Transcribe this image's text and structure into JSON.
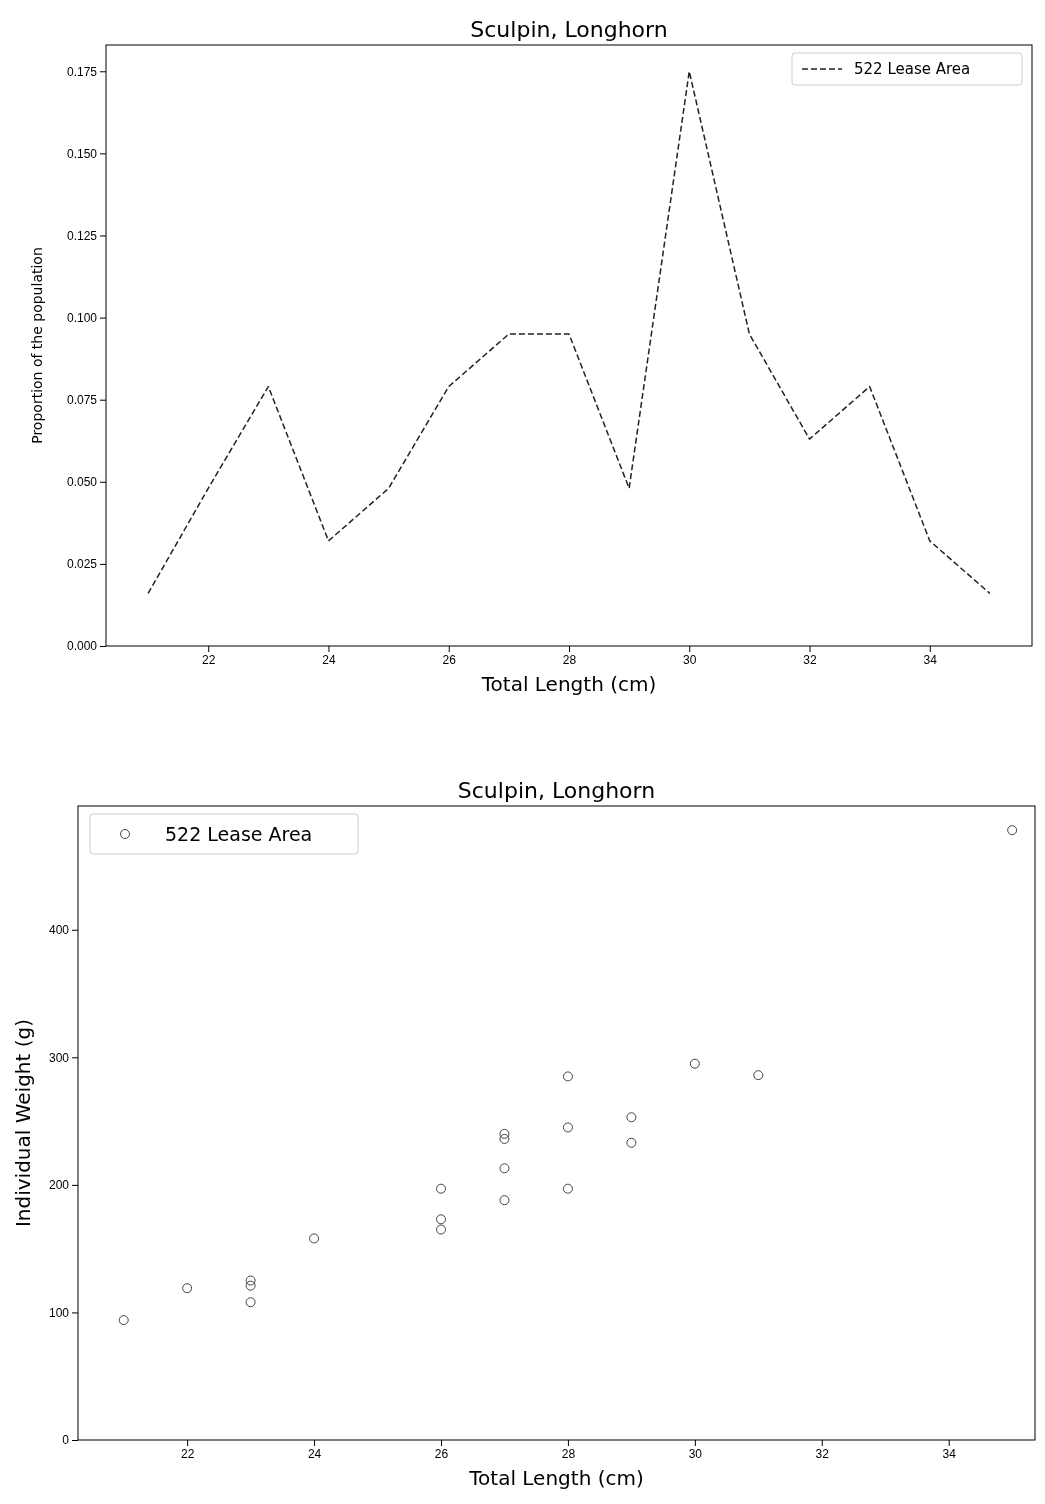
{
  "chart_data": [
    {
      "type": "line",
      "title": "Sculpin, Longhorn",
      "xlabel": "Total Length (cm)",
      "ylabel": "Proportion of the population",
      "x": [
        21,
        22,
        23,
        24,
        25,
        26,
        27,
        28,
        29,
        30,
        31,
        32,
        33,
        34,
        35
      ],
      "series": [
        {
          "name": "522 Lease Area",
          "color": "#222222",
          "values": [
            0.016,
            0.048,
            0.079,
            0.032,
            0.048,
            0.079,
            0.095,
            0.095,
            0.048,
            0.175,
            0.095,
            0.063,
            0.079,
            0.032,
            0.016
          ]
        }
      ],
      "xlim": [
        20.3,
        35.7
      ],
      "ylim": [
        0,
        0.183
      ],
      "xticks": [
        22,
        24,
        26,
        28,
        30,
        32,
        34
      ],
      "yticks": [
        {
          "value": 0,
          "label": "0.000"
        },
        {
          "value": 0.025,
          "label": "0.025"
        },
        {
          "value": 0.05,
          "label": "0.050"
        },
        {
          "value": 0.075,
          "label": "0.075"
        },
        {
          "value": 0.1,
          "label": "0.100"
        },
        {
          "value": 0.125,
          "label": "0.125"
        },
        {
          "value": 0.15,
          "label": "0.150"
        },
        {
          "value": 0.175,
          "label": "0.175"
        }
      ],
      "line_style": "dashed",
      "marker": "none",
      "legend": "top right",
      "grid": false
    },
    {
      "type": "scatter",
      "title": "Sculpin, Longhorn",
      "xlabel": "Total Length (cm)",
      "ylabel": "Individual Weight (g)",
      "series": [
        {
          "name": "522 Lease Area",
          "color": "#444444",
          "x": [
            21,
            22,
            23,
            23,
            23,
            24,
            26,
            26,
            26,
            27,
            27,
            27,
            27,
            28,
            28,
            28,
            29,
            29,
            30,
            31,
            35
          ],
          "values": [
            94,
            119,
            125,
            121,
            108,
            158,
            197,
            173,
            165,
            240,
            236,
            213,
            188,
            285,
            245,
            197,
            253,
            233,
            295,
            286,
            478
          ]
        }
      ],
      "xlim": [
        20.28,
        35.36
      ],
      "ylim": [
        0,
        497
      ],
      "xticks": [
        22,
        24,
        26,
        28,
        30,
        32,
        34
      ],
      "yticks": [
        0,
        100,
        200,
        300,
        400
      ],
      "marker": "circle",
      "legend": "top left",
      "grid": false
    }
  ]
}
